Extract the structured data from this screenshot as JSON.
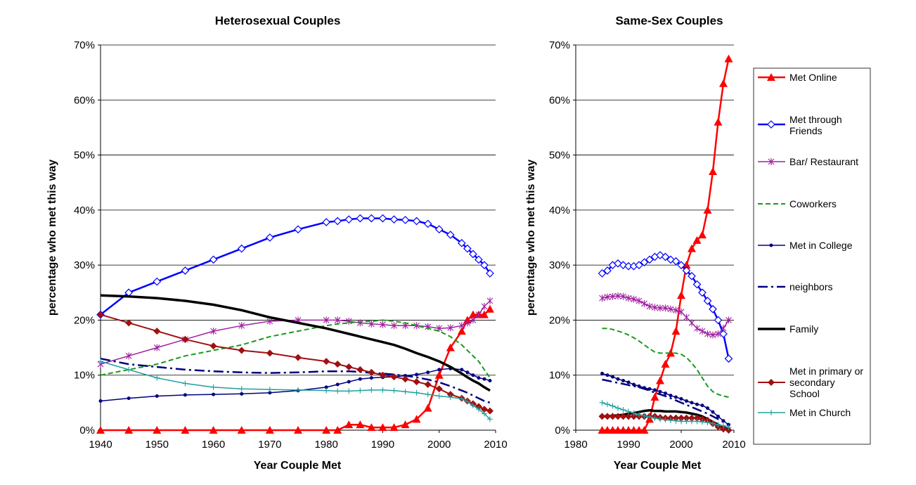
{
  "chart_data": [
    {
      "type": "line",
      "title": "Heterosexual Couples",
      "xlabel": "Year Couple Met",
      "ylabel": "percentage who met this way",
      "xlim": [
        1940,
        2010
      ],
      "ylim": [
        0,
        0.7
      ],
      "x_ticks": [
        1940,
        1950,
        1960,
        1970,
        1980,
        1990,
        2000,
        2010
      ],
      "y_ticks": [
        0,
        0.1,
        0.2,
        0.3,
        0.4,
        0.5,
        0.6,
        0.7
      ],
      "y_tick_labels": [
        "0%",
        "10%",
        "20%",
        "30%",
        "40%",
        "50%",
        "60%",
        "70%"
      ],
      "grid": "horizontal",
      "x": [
        1940,
        1945,
        1950,
        1955,
        1960,
        1965,
        1970,
        1975,
        1980,
        1982,
        1984,
        1986,
        1988,
        1990,
        1992,
        1994,
        1996,
        1998,
        2000,
        2002,
        2004,
        2005,
        2006,
        2007,
        2008,
        2009
      ],
      "series": [
        {
          "name": "Met Online",
          "values": [
            0,
            0,
            0,
            0,
            0,
            0,
            0,
            0,
            0,
            0,
            0.01,
            0.01,
            0.005,
            0.005,
            0.005,
            0.01,
            0.02,
            0.04,
            0.1,
            0.15,
            0.18,
            0.2,
            0.21,
            0.21,
            0.21,
            0.22
          ]
        },
        {
          "name": "Met through Friends",
          "values": [
            0.21,
            0.25,
            0.27,
            0.29,
            0.31,
            0.33,
            0.35,
            0.365,
            0.378,
            0.38,
            0.383,
            0.385,
            0.385,
            0.385,
            0.383,
            0.382,
            0.38,
            0.375,
            0.365,
            0.355,
            0.34,
            0.33,
            0.32,
            0.31,
            0.3,
            0.285
          ]
        },
        {
          "name": "Bar/ Restaurant",
          "values": [
            0.12,
            0.135,
            0.15,
            0.165,
            0.18,
            0.19,
            0.198,
            0.2,
            0.2,
            0.2,
            0.198,
            0.195,
            0.193,
            0.192,
            0.19,
            0.19,
            0.19,
            0.188,
            0.185,
            0.186,
            0.19,
            0.195,
            0.2,
            0.21,
            0.225,
            0.235
          ]
        },
        {
          "name": "Coworkers",
          "values": [
            0.1,
            0.11,
            0.12,
            0.135,
            0.145,
            0.155,
            0.17,
            0.18,
            0.19,
            0.193,
            0.195,
            0.197,
            0.198,
            0.2,
            0.198,
            0.195,
            0.19,
            0.185,
            0.18,
            0.17,
            0.155,
            0.145,
            0.135,
            0.125,
            0.11,
            0.095
          ]
        },
        {
          "name": "Met in College",
          "values": [
            0.053,
            0.058,
            0.062,
            0.064,
            0.065,
            0.066,
            0.068,
            0.072,
            0.078,
            0.083,
            0.088,
            0.093,
            0.095,
            0.096,
            0.097,
            0.099,
            0.101,
            0.105,
            0.11,
            0.112,
            0.11,
            0.105,
            0.1,
            0.095,
            0.093,
            0.09
          ]
        },
        {
          "name": "neighbors",
          "values": [
            0.13,
            0.12,
            0.115,
            0.11,
            0.107,
            0.105,
            0.104,
            0.105,
            0.107,
            0.107,
            0.107,
            0.106,
            0.104,
            0.103,
            0.101,
            0.099,
            0.096,
            0.092,
            0.087,
            0.08,
            0.072,
            0.068,
            0.063,
            0.058,
            0.053,
            0.05
          ]
        },
        {
          "name": "Family",
          "values": [
            0.245,
            0.243,
            0.24,
            0.235,
            0.228,
            0.218,
            0.205,
            0.195,
            0.185,
            0.18,
            0.175,
            0.17,
            0.165,
            0.16,
            0.155,
            0.148,
            0.14,
            0.133,
            0.125,
            0.115,
            0.103,
            0.096,
            0.09,
            0.085,
            0.078,
            0.072
          ]
        },
        {
          "name": "Met in primary or secondary School",
          "values": [
            0.21,
            0.195,
            0.18,
            0.165,
            0.153,
            0.145,
            0.14,
            0.132,
            0.125,
            0.12,
            0.115,
            0.11,
            0.105,
            0.1,
            0.097,
            0.093,
            0.088,
            0.083,
            0.075,
            0.065,
            0.058,
            0.053,
            0.048,
            0.043,
            0.038,
            0.035
          ]
        },
        {
          "name": "Met in Church",
          "values": [
            0.125,
            0.11,
            0.095,
            0.085,
            0.078,
            0.075,
            0.074,
            0.073,
            0.072,
            0.071,
            0.071,
            0.072,
            0.073,
            0.073,
            0.072,
            0.07,
            0.068,
            0.065,
            0.062,
            0.06,
            0.057,
            0.052,
            0.045,
            0.038,
            0.03,
            0.02
          ]
        }
      ]
    },
    {
      "type": "line",
      "title": "Same-Sex Couples",
      "xlabel": "Year Couple Met",
      "ylabel": "percentage who met this way",
      "xlim": [
        1980,
        2010
      ],
      "ylim": [
        0,
        0.7
      ],
      "x_ticks": [
        1980,
        1990,
        2000,
        2010
      ],
      "y_ticks": [
        0,
        0.1,
        0.2,
        0.3,
        0.4,
        0.5,
        0.6,
        0.7
      ],
      "y_tick_labels": [
        "0%",
        "10%",
        "20%",
        "30%",
        "40%",
        "50%",
        "60%",
        "70%"
      ],
      "grid": "horizontal",
      "legend_position": "right",
      "x": [
        1985,
        1986,
        1987,
        1988,
        1989,
        1990,
        1991,
        1992,
        1993,
        1994,
        1995,
        1996,
        1997,
        1998,
        1999,
        2000,
        2001,
        2002,
        2003,
        2004,
        2005,
        2006,
        2007,
        2008,
        2009
      ],
      "series": [
        {
          "name": "Met Online",
          "values": [
            0,
            0,
            0,
            0,
            0,
            0,
            0,
            0,
            0,
            0.02,
            0.06,
            0.09,
            0.12,
            0.14,
            0.18,
            0.245,
            0.3,
            0.33,
            0.345,
            0.355,
            0.4,
            0.47,
            0.56,
            0.63,
            0.675
          ]
        },
        {
          "name": "Met through Friends",
          "values": [
            0.285,
            0.29,
            0.3,
            0.303,
            0.3,
            0.298,
            0.298,
            0.3,
            0.305,
            0.31,
            0.315,
            0.318,
            0.315,
            0.31,
            0.307,
            0.3,
            0.29,
            0.28,
            0.265,
            0.25,
            0.235,
            0.22,
            0.2,
            0.175,
            0.13
          ]
        },
        {
          "name": "Bar/ Restaurant",
          "values": [
            0.24,
            0.242,
            0.243,
            0.244,
            0.243,
            0.24,
            0.238,
            0.235,
            0.23,
            0.225,
            0.223,
            0.222,
            0.222,
            0.22,
            0.218,
            0.215,
            0.205,
            0.195,
            0.185,
            0.18,
            0.175,
            0.173,
            0.175,
            0.185,
            0.2
          ]
        },
        {
          "name": "Coworkers",
          "values": [
            0.185,
            0.185,
            0.183,
            0.18,
            0.177,
            0.173,
            0.168,
            0.162,
            0.155,
            0.148,
            0.142,
            0.14,
            0.14,
            0.14,
            0.14,
            0.138,
            0.132,
            0.122,
            0.11,
            0.095,
            0.08,
            0.07,
            0.065,
            0.062,
            0.06
          ]
        },
        {
          "name": "Met in College",
          "values": [
            0.103,
            0.1,
            0.097,
            0.093,
            0.09,
            0.087,
            0.083,
            0.08,
            0.077,
            0.075,
            0.073,
            0.07,
            0.067,
            0.063,
            0.06,
            0.057,
            0.053,
            0.05,
            0.047,
            0.045,
            0.04,
            0.033,
            0.025,
            0.017,
            0.01
          ]
        },
        {
          "name": "neighbors",
          "values": [
            0.092,
            0.09,
            0.088,
            0.086,
            0.084,
            0.082,
            0.08,
            0.078,
            0.075,
            0.072,
            0.068,
            0.065,
            0.062,
            0.058,
            0.054,
            0.05,
            0.046,
            0.042,
            0.038,
            0.034,
            0.03,
            0.025,
            0.02,
            0.015,
            0.01
          ]
        },
        {
          "name": "Family",
          "values": [
            0.025,
            0.025,
            0.026,
            0.027,
            0.028,
            0.03,
            0.031,
            0.033,
            0.035,
            0.036,
            0.035,
            0.035,
            0.034,
            0.034,
            0.034,
            0.033,
            0.032,
            0.03,
            0.028,
            0.025,
            0.02,
            0.015,
            0.01,
            0.005,
            0.003
          ]
        },
        {
          "name": "Met in primary or secondary School",
          "values": [
            0.025,
            0.025,
            0.025,
            0.025,
            0.025,
            0.025,
            0.025,
            0.025,
            0.025,
            0.025,
            0.025,
            0.023,
            0.022,
            0.022,
            0.022,
            0.022,
            0.022,
            0.022,
            0.022,
            0.02,
            0.018,
            0.012,
            0.006,
            0.002,
            0.0
          ]
        },
        {
          "name": "Met in Church",
          "values": [
            0.05,
            0.047,
            0.044,
            0.04,
            0.037,
            0.034,
            0.031,
            0.028,
            0.026,
            0.024,
            0.022,
            0.02,
            0.019,
            0.018,
            0.017,
            0.016,
            0.016,
            0.016,
            0.016,
            0.015,
            0.014,
            0.012,
            0.01,
            0.008,
            0.005
          ]
        }
      ]
    }
  ],
  "legend": [
    {
      "label": "Met Online",
      "color": "#ff0000",
      "marker": "triangle",
      "dash": "solid",
      "width": 2.5
    },
    {
      "label": "Met through Friends",
      "color": "#0000ff",
      "marker": "diamond-open",
      "dash": "solid",
      "width": 2.5
    },
    {
      "label": "Bar/ Restaurant",
      "color": "#a020a0",
      "marker": "star",
      "dash": "solid",
      "width": 1.5
    },
    {
      "label": "Coworkers",
      "color": "#1a9a1a",
      "marker": "none",
      "dash": "dashed",
      "width": 2
    },
    {
      "label": "Met in College",
      "color": "#000080",
      "marker": "dot",
      "dash": "solid",
      "width": 1.5
    },
    {
      "label": "neighbors",
      "color": "#000080",
      "marker": "none",
      "dash": "dashdot",
      "width": 2.5
    },
    {
      "label": "Family",
      "color": "#000000",
      "marker": "none",
      "dash": "solid",
      "width": 3.5
    },
    {
      "label": "Met in primary or secondary School",
      "label_lines": [
        "Met in primary or",
        "secondary",
        "School"
      ],
      "color": "#a01010",
      "marker": "diamond",
      "dash": "solid",
      "width": 2
    },
    {
      "label": "Met in Church",
      "color": "#20a0a0",
      "marker": "plus",
      "dash": "solid",
      "width": 1.5
    }
  ]
}
